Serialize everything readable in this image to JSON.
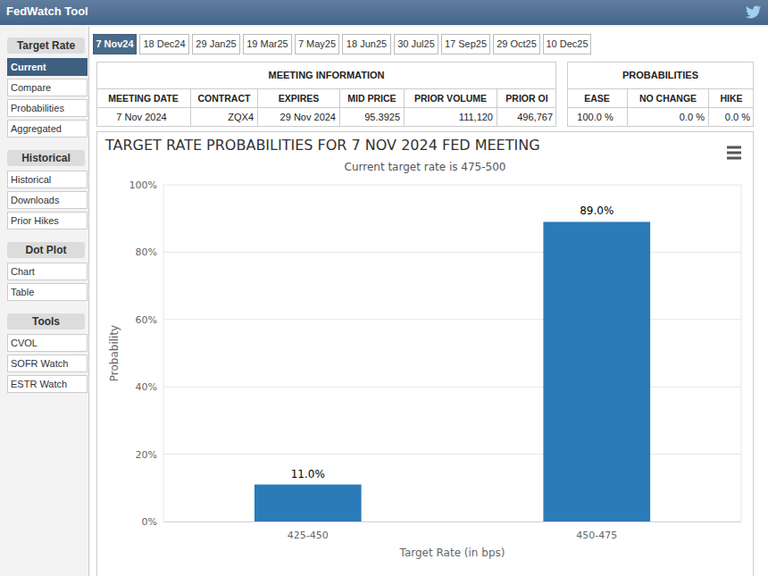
{
  "header": {
    "title": "FedWatch Tool"
  },
  "sidebar": [
    {
      "title": "Target Rate",
      "items": [
        "Current",
        "Compare",
        "Probabilities",
        "Aggregated"
      ]
    },
    {
      "title": "Historical",
      "items": [
        "Historical",
        "Downloads",
        "Prior Hikes"
      ]
    },
    {
      "title": "Dot Plot",
      "items": [
        "Chart",
        "Table"
      ]
    },
    {
      "title": "Tools",
      "items": [
        "CVOL",
        "SOFR Watch",
        "ESTR Watch"
      ]
    }
  ],
  "tabs": [
    "7 Nov24",
    "18 Dec24",
    "29 Jan25",
    "19 Mar25",
    "7 May25",
    "18 Jun25",
    "30 Jul25",
    "17 Sep25",
    "29 Oct25",
    "10 Dec25"
  ],
  "meeting_info": {
    "title": "MEETING INFORMATION",
    "columns": [
      "MEETING DATE",
      "CONTRACT",
      "EXPIRES",
      "MID PRICE",
      "PRIOR VOLUME",
      "PRIOR OI"
    ],
    "values": [
      "7 Nov 2024",
      "ZQX4",
      "29 Nov 2024",
      "95.3925",
      "111,120",
      "496,767"
    ]
  },
  "probabilities": {
    "title": "PROBABILITIES",
    "columns": [
      "EASE",
      "NO CHANGE",
      "HIKE"
    ],
    "values": [
      "100.0 %",
      "0.0 %",
      "0.0 %"
    ]
  },
  "chart_data": {
    "type": "bar",
    "title": "TARGET RATE PROBABILITIES FOR 7 NOV 2024 FED MEETING",
    "subtitle": "Current target rate is 475-500",
    "x_label": "Target Rate (in bps)",
    "y_label": "Probability",
    "categories": [
      "425-450",
      "450-475"
    ],
    "values": [
      11.0,
      89.0
    ],
    "value_labels": [
      "11.0%",
      "89.0%"
    ],
    "data_labels": true,
    "color": "#2b7bb9",
    "ylim": [
      0,
      100
    ],
    "yticks": [
      {
        "value": 0,
        "label": "0%"
      },
      {
        "value": 20,
        "label": "20%"
      },
      {
        "value": 40,
        "label": "40%"
      },
      {
        "value": 60,
        "label": "60%"
      },
      {
        "value": 80,
        "label": "80%"
      },
      {
        "value": 100,
        "label": "100%"
      }
    ],
    "grid": true
  }
}
